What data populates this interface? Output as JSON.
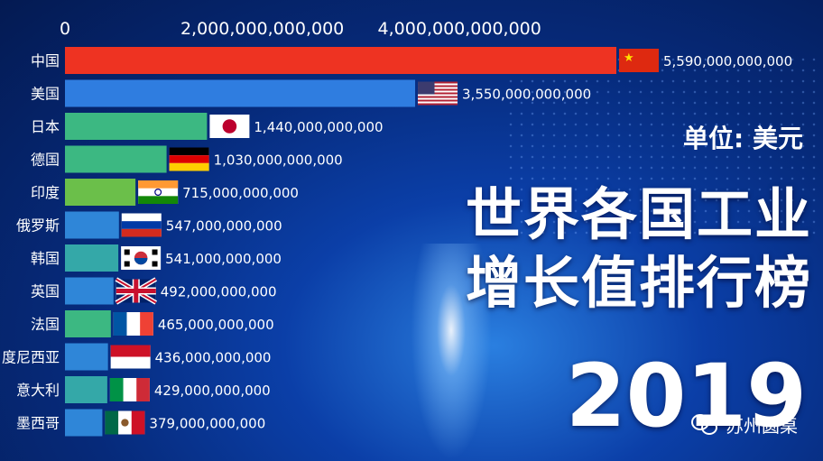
{
  "chart_data": {
    "type": "bar",
    "orientation": "horizontal",
    "categories": [
      "中国",
      "美国",
      "日本",
      "德国",
      "印度",
      "俄罗斯",
      "韩国",
      "英国",
      "法国",
      "度尼西亚",
      "意大利",
      "墨西哥"
    ],
    "values": [
      5590000000000,
      3550000000000,
      1440000000000,
      1030000000000,
      715000000000,
      547000000000,
      541000000000,
      492000000000,
      465000000000,
      436000000000,
      429000000000,
      379000000000
    ],
    "value_labels": [
      "5,590,000,000,000",
      "3,550,000,000,000",
      "1,440,000,000,000",
      "1,030,000,000,000",
      "715,000,000,000",
      "547,000,000,000",
      "541,000,000,000",
      "492,000,000,000",
      "465,000,000,000",
      "436,000,000,000",
      "429,000,000,000",
      "379,000,000,000"
    ],
    "bar_colors": [
      "#ee3322",
      "#2f7de0",
      "#3cb882",
      "#3cb882",
      "#6bbf4a",
      "#2f86d8",
      "#34a8a8",
      "#2f86d8",
      "#3cb882",
      "#2f86d8",
      "#34a8a8",
      "#2f86d8"
    ],
    "flags": [
      "cn",
      "us",
      "jp",
      "de",
      "in",
      "ru",
      "kr",
      "gb",
      "fr",
      "id",
      "it",
      "mx"
    ],
    "x_ticks": [
      0,
      2000000000000,
      4000000000000
    ],
    "x_tick_labels": [
      "0",
      "2,000,000,000,000",
      "4,000,000,000,000"
    ],
    "xlim": [
      0,
      5590000000000
    ],
    "grid": false
  },
  "unit_label": "单位: 美元",
  "title_line1": "世界各国工业",
  "title_line2": "增长值排行榜",
  "year": "2019",
  "watermark": "苏州圆桌"
}
